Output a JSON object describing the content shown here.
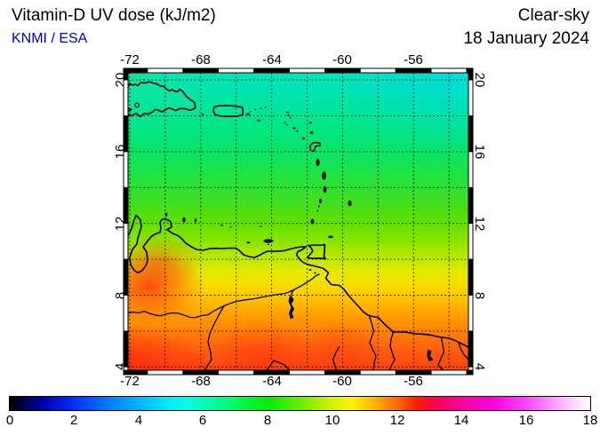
{
  "header": {
    "title": "Vitamin-D UV dose (kJ/m2)",
    "source": "KNMI / ESA",
    "source_color": "#0000c8",
    "condition": "Clear-sky",
    "date": "18 January 2024"
  },
  "map_axes": {
    "lon_ticks_top": [
      "-72",
      "-68",
      "-64",
      "-60",
      "-56"
    ],
    "lon_ticks_bottom": [
      "-72",
      "-68",
      "-64",
      "-60",
      "-56"
    ],
    "lat_ticks_left": [
      "20",
      "16",
      "12",
      "8",
      "4"
    ],
    "lat_ticks_right": [
      "20",
      "16",
      "12",
      "8",
      "4"
    ]
  },
  "colorbar": {
    "tick_labels": [
      "0",
      "2",
      "4",
      "6",
      "8",
      "10",
      "12",
      "14",
      "16",
      "18"
    ],
    "min": 0,
    "max": 18,
    "stops": [
      {
        "value": 0,
        "color": "#000000"
      },
      {
        "value": 1,
        "color": "#0000A8"
      },
      {
        "value": 2,
        "color": "#0030FF"
      },
      {
        "value": 3,
        "color": "#0078FF"
      },
      {
        "value": 4,
        "color": "#00B4FF"
      },
      {
        "value": 5,
        "color": "#00F0FF"
      },
      {
        "value": 5.5,
        "color": "#00FFE8"
      },
      {
        "value": 6.2,
        "color": "#00FCAC"
      },
      {
        "value": 7,
        "color": "#00FA5F"
      },
      {
        "value": 8,
        "color": "#00EF00"
      },
      {
        "value": 9,
        "color": "#6AEC00"
      },
      {
        "value": 10,
        "color": "#D6F200"
      },
      {
        "value": 10.6,
        "color": "#FFF200"
      },
      {
        "value": 11.2,
        "color": "#FFC000"
      },
      {
        "value": 12,
        "color": "#FF6A00"
      },
      {
        "value": 12.6,
        "color": "#FF2000"
      },
      {
        "value": 13.2,
        "color": "#FF0050"
      },
      {
        "value": 14,
        "color": "#FF00A0"
      },
      {
        "value": 15,
        "color": "#FF00E0"
      },
      {
        "value": 16,
        "color": "#FF44FF"
      },
      {
        "value": 17,
        "color": "#FFA8FF"
      },
      {
        "value": 17.6,
        "color": "#FFE4FF"
      },
      {
        "value": 18,
        "color": "#FFFFFF"
      }
    ]
  },
  "chart_data": {
    "type": "heatmap",
    "title": "Vitamin-D UV dose (kJ/m2)",
    "subtitle": "KNMI / ESA",
    "condition": "Clear-sky",
    "date": "18 January 2024",
    "units": "kJ/m2",
    "region": "Caribbean and northern South America",
    "extent": {
      "lon_min": -72.1,
      "lon_max": -52.9,
      "lat_min": 3.8,
      "lat_max": 20.4
    },
    "grid_interval_deg": 2,
    "lon_tick_values": [
      -72,
      -68,
      -64,
      -60,
      -56
    ],
    "lat_tick_values": [
      20,
      16,
      12,
      8,
      4
    ],
    "colorbar_range": [
      0,
      18
    ],
    "colorbar_tick_values": [
      0,
      2,
      4,
      6,
      8,
      10,
      12,
      14,
      16,
      18
    ],
    "field_by_latitude": [
      {
        "lat": 20,
        "approx_dose_kJ_m2": 5.7
      },
      {
        "lat": 18,
        "approx_dose_kJ_m2": 6.1
      },
      {
        "lat": 16,
        "approx_dose_kJ_m2": 6.7
      },
      {
        "lat": 14,
        "approx_dose_kJ_m2": 7.3
      },
      {
        "lat": 12,
        "approx_dose_kJ_m2": 8.2
      },
      {
        "lat": 10,
        "approx_dose_kJ_m2": 9.4
      },
      {
        "lat": 8,
        "approx_dose_kJ_m2": 10.7
      },
      {
        "lat": 6,
        "approx_dose_kJ_m2": 11.5
      },
      {
        "lat": 4,
        "approx_dose_kJ_m2": 12.3
      }
    ],
    "local_maxima": [
      {
        "lon": -71.3,
        "lat": 8.6,
        "approx_dose_kJ_m2": 12.8,
        "note": "Andes ridge streak"
      },
      {
        "lon": -72.0,
        "lat": 4.5,
        "approx_dose_kJ_m2": 13.0,
        "note": "bottom-left red area"
      },
      {
        "lon": -64.5,
        "lat": 4.6,
        "approx_dose_kJ_m2": 12.7,
        "note": "Guayana highlands blob"
      },
      {
        "lon": -60.3,
        "lat": 5.0,
        "approx_dose_kJ_m2": 12.5,
        "note": "blob near Guyana border"
      }
    ],
    "gradient_direction": "dose increases from north (cyan-green, ~5.5) to south (red, ~12.5)",
    "legend_position": "bottom horizontal colorbar"
  }
}
